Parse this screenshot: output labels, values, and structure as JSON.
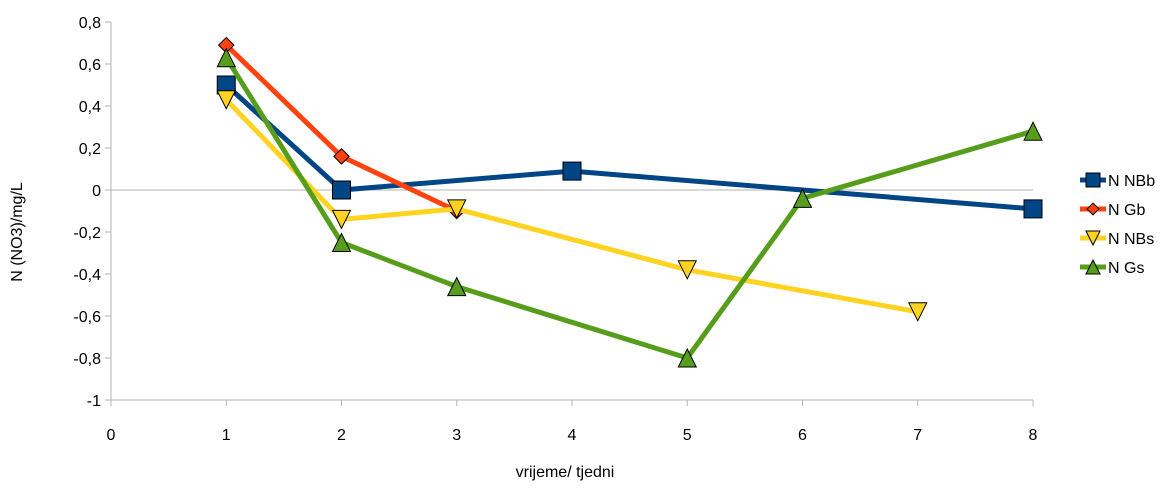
{
  "chart_data": {
    "type": "line",
    "title": "",
    "xlabel": "vrijeme/ tjedni",
    "ylabel": "N (NO3)/mg/L",
    "xlim": [
      0,
      8
    ],
    "ylim": [
      -1,
      0.8
    ],
    "x_ticks": [
      "0",
      "1",
      "2",
      "3",
      "4",
      "5",
      "6",
      "7",
      "8"
    ],
    "y_ticks": [
      "0,8",
      "0,6",
      "0,4",
      "0,2",
      "0",
      "-0,2",
      "-0,4",
      "-0,6",
      "-0,8",
      "-1"
    ],
    "grid": "horizontal line at 0",
    "legend_position": "right",
    "series": [
      {
        "name": "N NBb",
        "color": "#004586",
        "marker": "square",
        "points": [
          [
            1,
            0.5
          ],
          [
            2,
            0.0
          ],
          [
            4,
            0.09
          ],
          [
            8,
            -0.09
          ]
        ]
      },
      {
        "name": "N Gb",
        "color": "#ff420e",
        "marker": "diamond",
        "points": [
          [
            1,
            0.69
          ],
          [
            2,
            0.16
          ],
          [
            3,
            -0.1
          ]
        ]
      },
      {
        "name": "N NBs",
        "color": "#ffd320",
        "marker": "triangle-down",
        "points": [
          [
            1,
            0.43
          ],
          [
            2,
            -0.14
          ],
          [
            3,
            -0.09
          ],
          [
            5,
            -0.38
          ],
          [
            7,
            -0.58
          ]
        ]
      },
      {
        "name": "N Gs",
        "color": "#579d1c",
        "marker": "triangle-up",
        "points": [
          [
            1,
            0.63
          ],
          [
            2,
            -0.25
          ],
          [
            3,
            -0.46
          ],
          [
            5,
            -0.8
          ],
          [
            6,
            -0.04
          ],
          [
            8,
            0.28
          ]
        ]
      }
    ]
  }
}
